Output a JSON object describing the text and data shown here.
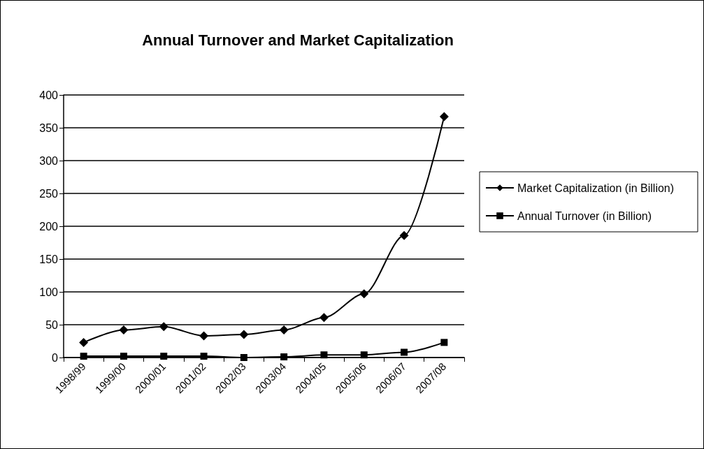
{
  "chart_data": {
    "type": "line",
    "title": "Annual Turnover and Market Capitalization",
    "categories": [
      "1998/99",
      "1999/00",
      "2000/01",
      "2001/02",
      "2002/03",
      "2003/04",
      "2004/05",
      "2005/06",
      "2006/07",
      "2007/08"
    ],
    "series": [
      {
        "name": "Market Capitalization (in Billion)",
        "color": "#000000",
        "marker": "diamond",
        "values": [
          23,
          42,
          47,
          33,
          35,
          42,
          61,
          97,
          186,
          367
        ]
      },
      {
        "name": "Annual Turnover (in Billion)",
        "color": "#000000",
        "marker": "square",
        "values": [
          2,
          2,
          2,
          2,
          0,
          1,
          4,
          4,
          8,
          23
        ]
      }
    ],
    "ylim": [
      0,
      400
    ],
    "yticks": [
      0,
      50,
      100,
      150,
      200,
      250,
      300,
      350,
      400
    ],
    "grid": "y",
    "legend": "right",
    "line_style": "solid"
  }
}
